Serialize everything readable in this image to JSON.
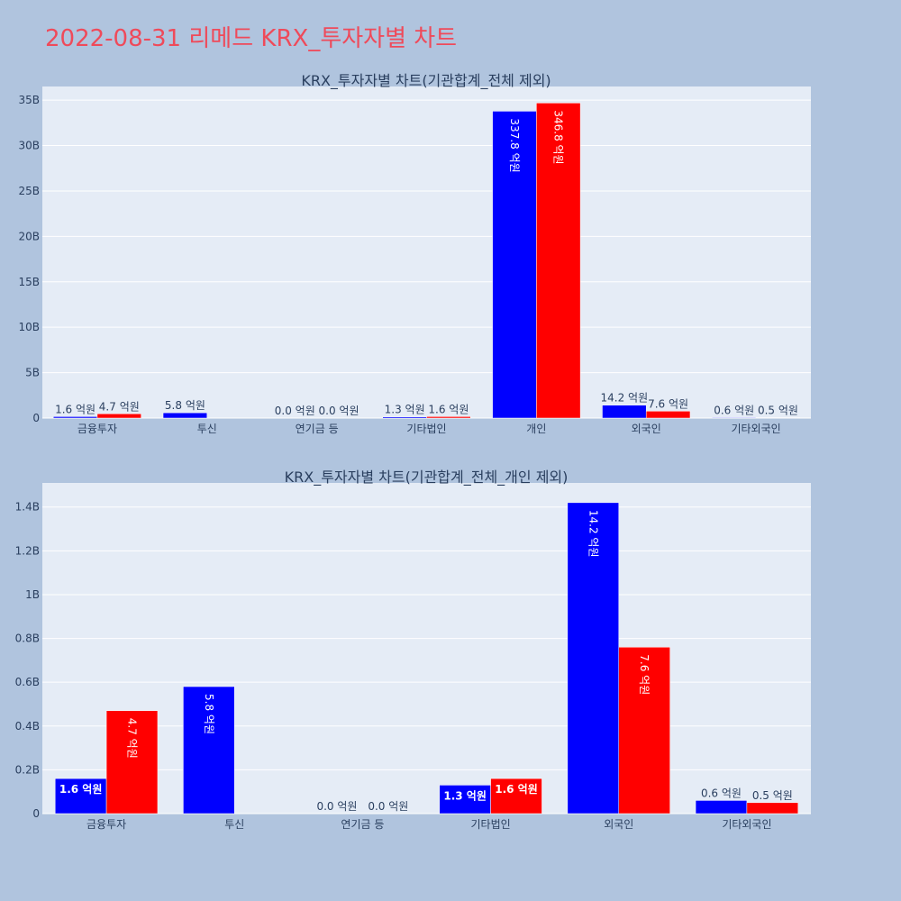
{
  "title": "2022-08-31 리메드 KRX_투자자별 차트",
  "colors": {
    "buy": "#0000ff",
    "sell": "#ff0000",
    "plot_bg": "#e5ecf6",
    "page_bg": "#b0c4de",
    "title": "#ef4a5a"
  },
  "chart_data": [
    {
      "type": "bar",
      "title": "KRX_투자자별 차트(기관합계_전체 제외)",
      "categories": [
        "금융투자",
        "투신",
        "연기금 등",
        "기타법인",
        "개인",
        "외국인",
        "기타외국인"
      ],
      "series": [
        {
          "values": [
            0.16,
            0.58,
            0.0,
            0.13,
            33.78,
            1.42,
            0.06
          ],
          "labels": [
            "1.6 억원",
            "5.8 억원",
            "0.0 억원",
            "1.3 억원",
            "337.8 억원",
            "14.2 억원",
            "0.6 억원"
          ]
        },
        {
          "values": [
            0.47,
            null,
            0.0,
            0.16,
            34.68,
            0.76,
            0.05
          ],
          "labels": [
            "4.7 억원",
            "",
            "0.0 억원",
            "1.6 억원",
            "346.8 억원",
            "7.6 억원",
            "0.5 억원"
          ]
        }
      ],
      "unit": "B",
      "ylim": [
        0,
        36.5
      ],
      "yticks": [
        0,
        5,
        10,
        15,
        20,
        25,
        30,
        35
      ],
      "ytick_labels": [
        "0",
        "5B",
        "10B",
        "15B",
        "20B",
        "25B",
        "30B",
        "35B"
      ],
      "grid": true
    },
    {
      "type": "bar",
      "title": "KRX_투자자별 차트(기관합계_전체_개인 제외)",
      "categories": [
        "금융투자",
        "투신",
        "연기금 등",
        "기타법인",
        "외국인",
        "기타외국인"
      ],
      "series": [
        {
          "values": [
            0.16,
            0.58,
            0.0,
            0.13,
            1.42,
            0.06
          ],
          "labels": [
            "1.6 억원",
            "5.8 억원",
            "0.0 억원",
            "1.3 억원",
            "14.2 억원",
            "0.6 억원"
          ]
        },
        {
          "values": [
            0.47,
            null,
            0.0,
            0.16,
            0.76,
            0.05
          ],
          "labels": [
            "4.7 억원",
            "",
            "0.0 억원",
            "1.6 억원",
            "7.6 억원",
            "0.5 억원"
          ]
        }
      ],
      "unit": "B",
      "ylim": [
        0,
        1.51
      ],
      "yticks": [
        0,
        0.2,
        0.4,
        0.6,
        0.8,
        1.0,
        1.2,
        1.4
      ],
      "ytick_labels": [
        "0",
        "0.2B",
        "0.4B",
        "0.6B",
        "0.8B",
        "1B",
        "1.2B",
        "1.4B"
      ],
      "grid": true
    }
  ]
}
